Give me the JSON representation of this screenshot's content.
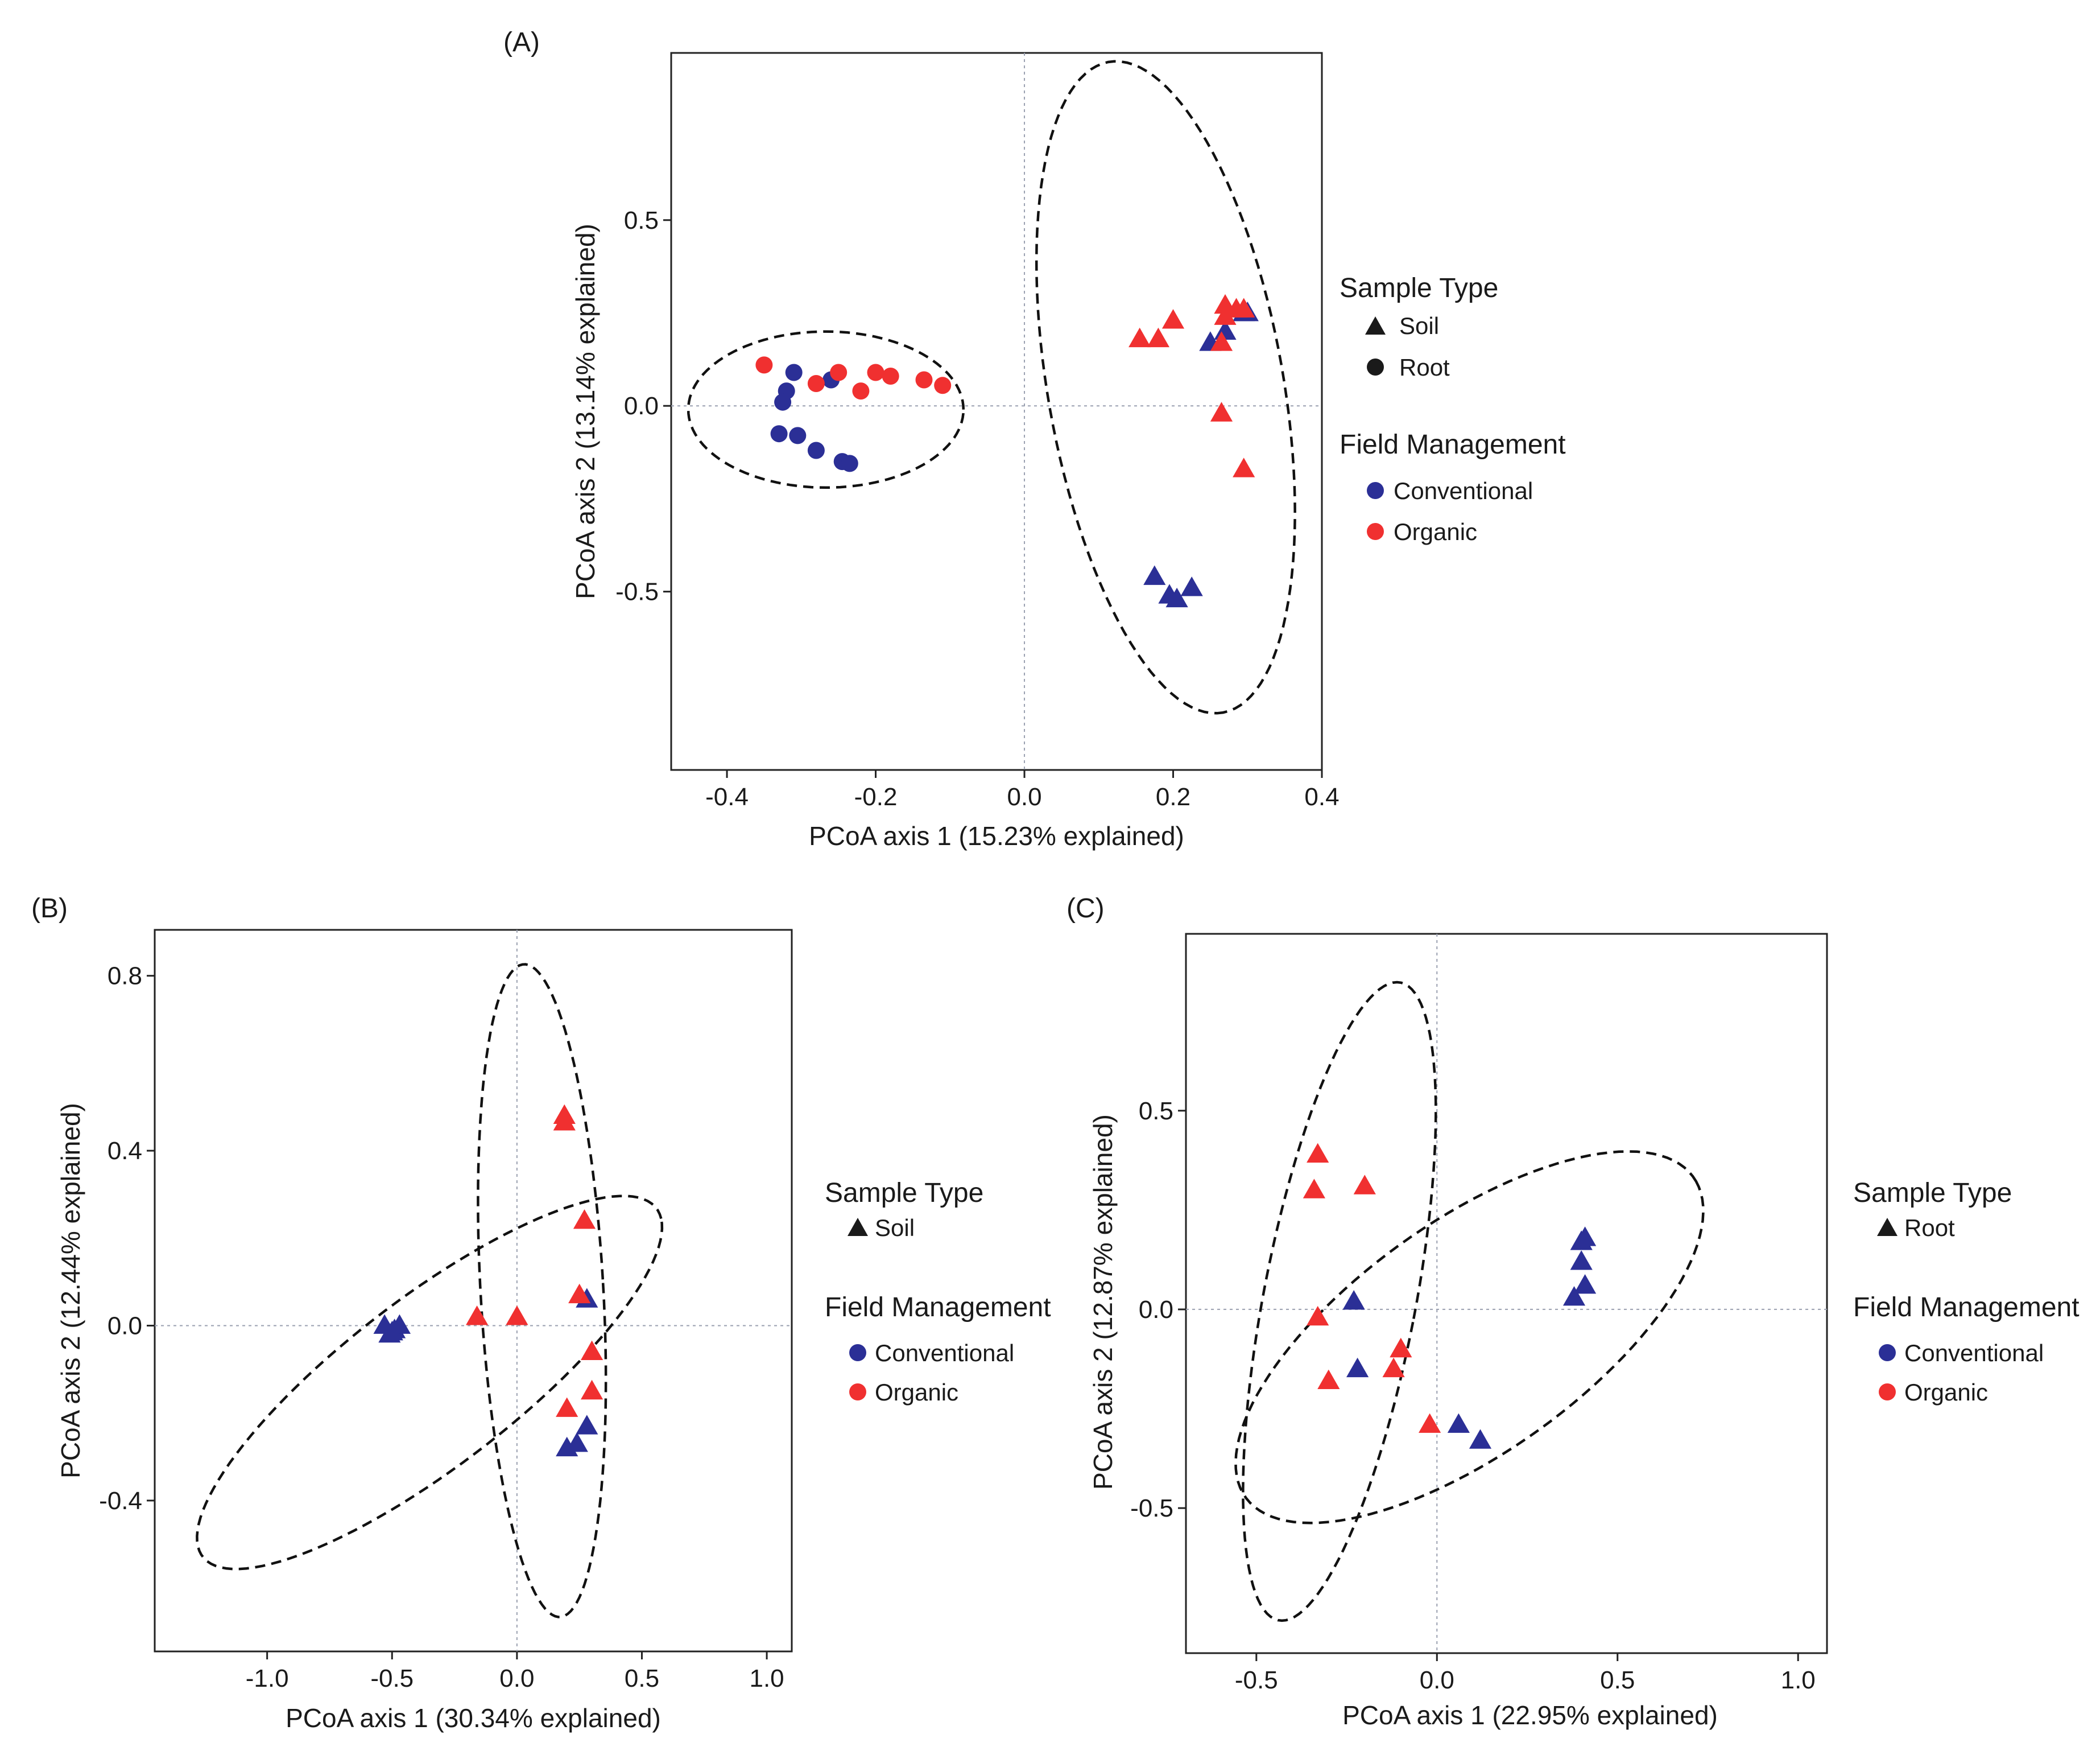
{
  "colors": {
    "conventional": "#2b2f96",
    "organic": "#f03030",
    "legend_symbol": "#1a1a1a"
  },
  "chart_data": [
    {
      "id": "A",
      "type": "scatter",
      "panel_label": "(A)",
      "title": "",
      "xlabel": "PCoA axis 1 (15.23% explained)",
      "ylabel": "PCoA axis 2 (13.14% explained)",
      "xlim": [
        -0.475,
        0.4
      ],
      "ylim": [
        -0.98,
        0.95
      ],
      "xticks": [
        -0.4,
        -0.2,
        0.0,
        0.2,
        0.4
      ],
      "xtick_labels": [
        "-0.4",
        "-0.2",
        "0.0",
        "0.2",
        "0.4"
      ],
      "yticks": [
        0.5,
        0.0,
        -0.5
      ],
      "ytick_labels": [
        "0.5",
        "0.0",
        "-0.5"
      ],
      "grid": false,
      "zero_lines": true,
      "legend": {
        "position": "right",
        "sample_type_title": "Sample Type",
        "sample_type_items": [
          {
            "label": "Soil",
            "shape": "triangle"
          },
          {
            "label": "Root",
            "shape": "circle"
          }
        ],
        "management_title": "Field Management",
        "management_items": [
          {
            "label": "Conventional",
            "color_key": "conventional"
          },
          {
            "label": "Organic",
            "color_key": "organic"
          }
        ]
      },
      "ellipses": [
        {
          "cx": -0.267,
          "cy": -0.01,
          "rx": 0.185,
          "ry": 0.21,
          "angle": 0
        },
        {
          "cx": 0.19,
          "cy": 0.05,
          "rx": 0.88,
          "ry": 0.16,
          "angle": -85.5
        }
      ],
      "series": [
        {
          "name": "Conventional Root",
          "group": "Conventional",
          "sample_type": "Root",
          "shape": "circle",
          "color_key": "conventional",
          "points": [
            [
              -0.31,
              0.09
            ],
            [
              -0.32,
              0.04
            ],
            [
              -0.325,
              0.01
            ],
            [
              -0.26,
              0.07
            ],
            [
              -0.33,
              -0.075
            ],
            [
              -0.305,
              -0.08
            ],
            [
              -0.28,
              -0.12
            ],
            [
              -0.245,
              -0.15
            ],
            [
              -0.235,
              -0.155
            ]
          ]
        },
        {
          "name": "Organic Root",
          "group": "Organic",
          "sample_type": "Root",
          "shape": "circle",
          "color_key": "organic",
          "points": [
            [
              -0.35,
              0.11
            ],
            [
              -0.28,
              0.06
            ],
            [
              -0.25,
              0.09
            ],
            [
              -0.22,
              0.04
            ],
            [
              -0.2,
              0.09
            ],
            [
              -0.18,
              0.08
            ],
            [
              -0.135,
              0.07
            ],
            [
              -0.11,
              0.055
            ]
          ]
        },
        {
          "name": "Conventional Soil",
          "group": "Conventional",
          "sample_type": "Soil",
          "shape": "triangle",
          "color_key": "conventional",
          "points": [
            [
              0.25,
              0.17
            ],
            [
              0.27,
              0.2
            ],
            [
              0.295,
              0.25
            ],
            [
              0.3,
              0.25
            ],
            [
              0.175,
              -0.46
            ],
            [
              0.195,
              -0.51
            ],
            [
              0.205,
              -0.52
            ],
            [
              0.225,
              -0.49
            ]
          ]
        },
        {
          "name": "Organic Soil",
          "group": "Organic",
          "sample_type": "Soil",
          "shape": "triangle",
          "color_key": "organic",
          "points": [
            [
              0.155,
              0.18
            ],
            [
              0.18,
              0.18
            ],
            [
              0.2,
              0.23
            ],
            [
              0.265,
              0.17
            ],
            [
              0.27,
              0.24
            ],
            [
              0.27,
              0.27
            ],
            [
              0.285,
              0.26
            ],
            [
              0.295,
              0.26
            ],
            [
              0.265,
              -0.02
            ],
            [
              0.295,
              -0.17
            ]
          ]
        }
      ]
    },
    {
      "id": "B",
      "type": "scatter",
      "panel_label": "(B)",
      "title": "",
      "xlabel": "PCoA axis 1 (30.34% explained)",
      "ylabel": "PCoA axis 2 (12.44% explained)",
      "xlim": [
        -1.45,
        1.1
      ],
      "ylim": [
        -0.745,
        0.905
      ],
      "xticks": [
        -1.0,
        -0.5,
        0.0,
        0.5,
        1.0
      ],
      "xtick_labels": [
        "-1.0",
        "-0.5",
        "0.0",
        "0.5",
        "1.0"
      ],
      "yticks": [
        0.8,
        0.4,
        0.0,
        -0.4
      ],
      "ytick_labels": [
        "0.8",
        "0.4",
        "0.0",
        "-0.4"
      ],
      "grid": false,
      "zero_lines": true,
      "legend": {
        "position": "right",
        "sample_type_title": "Sample Type",
        "sample_type_items": [
          {
            "label": "Soil",
            "shape": "triangle"
          }
        ],
        "management_title": "Field Management",
        "management_items": [
          {
            "label": "Conventional",
            "color_key": "conventional"
          },
          {
            "label": "Organic",
            "color_key": "organic"
          }
        ]
      },
      "ellipses": [
        {
          "cx": -0.35,
          "cy": -0.13,
          "rx": 1.0,
          "ry": 0.22,
          "angle": 22
        },
        {
          "cx": 0.1,
          "cy": 0.08,
          "rx": 0.245,
          "ry": 0.75,
          "angle": 6
        }
      ],
      "series": [
        {
          "name": "Conventional Soil",
          "group": "Conventional",
          "sample_type": "Soil",
          "shape": "triangle",
          "color_key": "conventional",
          "points": [
            [
              -0.53,
              0.0
            ],
            [
              -0.51,
              -0.02
            ],
            [
              -0.49,
              -0.01
            ],
            [
              -0.47,
              0.0
            ],
            [
              -0.5,
              -0.015
            ],
            [
              0.28,
              0.06
            ],
            [
              0.28,
              -0.23
            ],
            [
              0.24,
              -0.27
            ],
            [
              0.2,
              -0.28
            ]
          ]
        },
        {
          "name": "Organic Soil",
          "group": "Organic",
          "sample_type": "Soil",
          "shape": "triangle",
          "color_key": "organic",
          "points": [
            [
              0.19,
              0.48
            ],
            [
              0.19,
              0.465
            ],
            [
              0.27,
              0.24
            ],
            [
              0.25,
              0.07
            ],
            [
              -0.16,
              0.02
            ],
            [
              0.0,
              0.02
            ],
            [
              0.3,
              -0.06
            ],
            [
              0.3,
              -0.15
            ],
            [
              0.2,
              -0.19
            ]
          ]
        }
      ]
    },
    {
      "id": "C",
      "type": "scatter",
      "panel_label": "(C)",
      "title": "",
      "xlabel": "PCoA axis 1 (22.95% explained)",
      "ylabel": "PCoA axis 2 (12.87% explained)",
      "xlim": [
        -0.695,
        1.08
      ],
      "ylim": [
        -0.865,
        0.945
      ],
      "xticks": [
        -0.5,
        0.0,
        0.5,
        1.0
      ],
      "xtick_labels": [
        "-0.5",
        "0.0",
        "0.5",
        "1.0"
      ],
      "yticks": [
        0.5,
        0.0,
        -0.5
      ],
      "ytick_labels": [
        "0.5",
        "0.0",
        "-0.5"
      ],
      "grid": false,
      "zero_lines": true,
      "legend": {
        "position": "right",
        "sample_type_title": "Sample Type",
        "sample_type_items": [
          {
            "label": "Root",
            "shape": "triangle"
          }
        ],
        "management_title": "Field Management",
        "management_items": [
          {
            "label": "Conventional",
            "color_key": "conventional"
          },
          {
            "label": "Organic",
            "color_key": "organic"
          }
        ]
      },
      "ellipses": [
        {
          "cx": 0.09,
          "cy": -0.07,
          "rx": 0.74,
          "ry": 0.3,
          "angle": 32
        },
        {
          "cx": -0.27,
          "cy": 0.02,
          "rx": 0.21,
          "ry": 0.82,
          "angle": -12
        }
      ],
      "series": [
        {
          "name": "Conventional Root",
          "group": "Conventional",
          "sample_type": "Root",
          "shape": "triangle",
          "color_key": "conventional",
          "points": [
            [
              -0.23,
              0.02
            ],
            [
              -0.22,
              -0.15
            ],
            [
              0.06,
              -0.29
            ],
            [
              0.12,
              -0.33
            ],
            [
              0.38,
              0.03
            ],
            [
              0.41,
              0.06
            ],
            [
              0.4,
              0.12
            ],
            [
              0.4,
              0.17
            ],
            [
              0.41,
              0.18
            ]
          ]
        },
        {
          "name": "Organic Root",
          "group": "Organic",
          "sample_type": "Root",
          "shape": "triangle",
          "color_key": "organic",
          "points": [
            [
              -0.33,
              0.39
            ],
            [
              -0.34,
              0.3
            ],
            [
              -0.2,
              0.31
            ],
            [
              -0.33,
              -0.02
            ],
            [
              -0.3,
              -0.18
            ],
            [
              -0.1,
              -0.1
            ],
            [
              -0.12,
              -0.15
            ],
            [
              -0.02,
              -0.29
            ]
          ]
        }
      ]
    }
  ]
}
